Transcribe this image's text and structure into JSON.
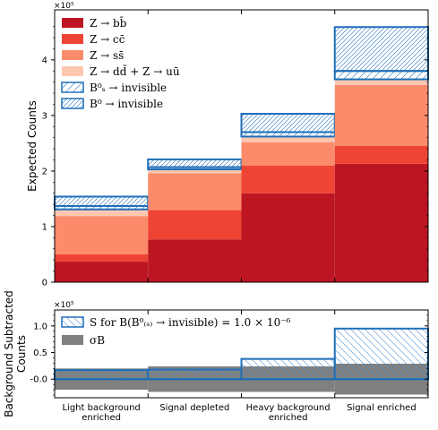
{
  "chart_data": [
    {
      "type": "bar",
      "stacked": true,
      "categories": [
        "Light background enriched",
        "Signal depleted",
        "Heavy background enriched",
        "Signal enriched"
      ],
      "ylabel": "Expected Counts",
      "multiplier_label": "×10⁵",
      "ylim": [
        0,
        4.9
      ],
      "yticks": [
        0,
        1,
        2,
        3,
        4
      ],
      "series": [
        {
          "name": "Z → bb̄",
          "color": "#bd1622",
          "values": [
            0.37,
            0.77,
            1.6,
            2.13
          ]
        },
        {
          "name": "Z → cc̄",
          "color": "#ee4434",
          "values": [
            0.13,
            0.53,
            0.5,
            0.32
          ]
        },
        {
          "name": "Z → ss̄",
          "color": "#fc8b6c",
          "values": [
            0.69,
            0.66,
            0.42,
            1.1
          ]
        },
        {
          "name": "Z → dd̄ + Z → uū",
          "color": "#fdc7b0",
          "values": [
            0.12,
            0.07,
            0.1,
            0.1
          ]
        },
        {
          "name": "B⁰ₛ → invisible",
          "color": "#1f6fba",
          "hatch": "light",
          "values": [
            0.06,
            0.04,
            0.08,
            0.15
          ]
        },
        {
          "name": "B⁰ → invisible",
          "color": "#1f6fba",
          "hatch": "dense",
          "values": [
            0.17,
            0.14,
            0.33,
            0.79
          ]
        }
      ]
    },
    {
      "type": "bar",
      "categories": [
        "Light background enriched",
        "Signal depleted",
        "Heavy background enriched",
        "Signal enriched"
      ],
      "ylabel_line1": "Background Subtracted",
      "ylabel_line2": "Counts",
      "multiplier_label": "×10⁵",
      "ylim": [
        -0.35,
        1.3
      ],
      "yticks": [
        "-0.0",
        "0.5",
        "1.0"
      ],
      "ytick_values": [
        0,
        0.5,
        1.0
      ],
      "series": [
        {
          "name": "S for B(B⁰₍ₛ₎ → invisible) = 1.0 × 10⁻⁶",
          "color": "#1f6fba",
          "values": [
            0.17,
            0.18,
            0.38,
            0.95
          ]
        },
        {
          "name": "σB",
          "color": "#808080",
          "values": [
            0.2,
            0.24,
            0.24,
            0.29
          ]
        }
      ]
    }
  ]
}
